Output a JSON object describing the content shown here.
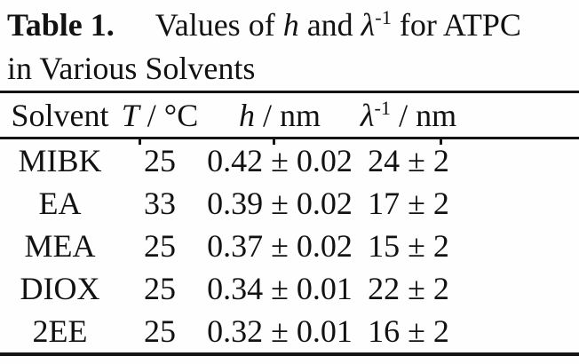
{
  "title": {
    "label": "Table 1.",
    "pre_h": "Values of ",
    "h_var": "h",
    "mid": " and ",
    "lambda_var": "λ",
    "lambda_sup": "-1",
    "post": " for ATPC",
    "line2": "in Various Solvents"
  },
  "table": {
    "headers": {
      "solvent": "Solvent",
      "t_var": "T",
      "t_rest": " / °C",
      "h_var": "h",
      "h_rest": " / nm",
      "lambda_var": "λ",
      "lambda_sup": "-1",
      "lambda_rest": " / nm"
    },
    "rows": [
      {
        "solvent": "MIBK",
        "temp": "25",
        "h": "0.42 ± 0.02",
        "lambda_inv": "24 ± 2"
      },
      {
        "solvent": "EA",
        "temp": "33",
        "h": "0.39 ± 0.02",
        "lambda_inv": "17 ± 2"
      },
      {
        "solvent": "MEA",
        "temp": "25",
        "h": "0.37 ± 0.02",
        "lambda_inv": "15 ± 2"
      },
      {
        "solvent": "DIOX",
        "temp": "25",
        "h": "0.34 ± 0.01",
        "lambda_inv": "22 ± 2"
      },
      {
        "solvent": "2EE",
        "temp": "25",
        "h": "0.32 ± 0.01",
        "lambda_inv": "16 ± 2"
      }
    ]
  },
  "colors": {
    "text": "#121212",
    "rule": "#151515",
    "background": "#fefefe"
  }
}
